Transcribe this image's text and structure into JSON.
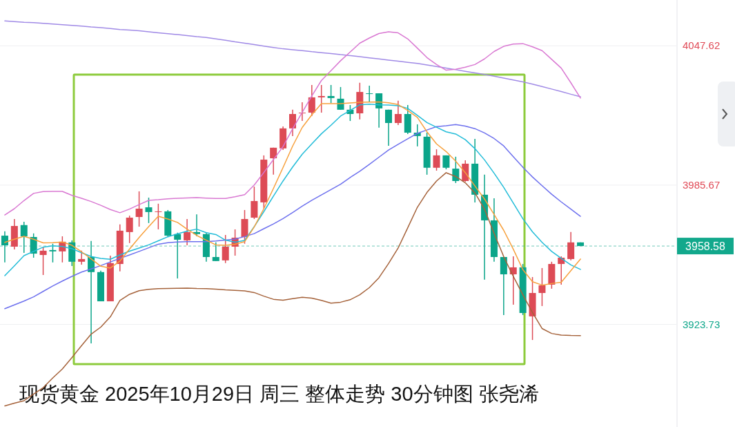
{
  "chart_data": {
    "type": "candlestick",
    "title": "现货黄金 2025年10月29日 周三 整体走势 30分钟图 张尧浠",
    "categories": [
      null,
      null,
      null,
      null,
      null,
      null,
      null,
      null,
      null,
      null,
      null,
      null,
      null,
      null,
      null,
      null,
      null,
      null,
      null,
      null,
      null,
      null,
      null,
      null,
      null,
      null,
      null,
      null,
      null,
      null,
      null,
      null,
      null,
      null,
      null,
      null,
      null,
      null,
      null,
      null,
      null,
      null,
      null,
      null,
      null,
      null,
      null,
      null,
      null,
      null,
      null,
      null,
      null,
      null,
      null,
      null,
      null,
      null,
      null,
      null,
      null
    ],
    "ohlc": [
      [
        3963.2,
        3965.1,
        3951.3,
        3958.9
      ],
      [
        3958.3,
        3970.6,
        3957.1,
        3967.5
      ],
      [
        3967.9,
        3969.4,
        3955.5,
        3962.9
      ],
      [
        3962.6,
        3964.2,
        3953.4,
        3955.2
      ],
      [
        3954.6,
        3958.0,
        3945.7,
        3956.5
      ],
      [
        3956.8,
        3959.6,
        3951.3,
        3956.2
      ],
      [
        3956.2,
        3962.9,
        3951.3,
        3960.5
      ],
      [
        3960.2,
        3961.1,
        3949.7,
        3951.6
      ],
      [
        3951.6,
        3956.5,
        3950.3,
        3952.8
      ],
      [
        3953.7,
        3960.8,
        3915.3,
        3947.0
      ],
      [
        3947.0,
        3947.6,
        3934.0,
        3934.0
      ],
      [
        3934.0,
        3954.3,
        3934.0,
        3951.0
      ],
      [
        3950.6,
        3968.2,
        3947.3,
        3965.4
      ],
      [
        3964.8,
        3972.1,
        3959.9,
        3971.2
      ],
      [
        3971.5,
        3982.9,
        3967.2,
        3975.2
      ],
      [
        3975.8,
        3980.1,
        3968.8,
        3973.7
      ],
      [
        3973.7,
        3977.4,
        3966.0,
        3974.0
      ],
      [
        3974.0,
        3974.6,
        3962.6,
        3963.2
      ],
      [
        3963.9,
        3964.5,
        3944.2,
        3961.4
      ],
      [
        3961.1,
        3970.6,
        3958.9,
        3964.8
      ],
      [
        3964.8,
        3972.7,
        3962.9,
        3963.9
      ],
      [
        3963.9,
        3964.5,
        3951.6,
        3953.7
      ],
      [
        3953.7,
        3960.2,
        3951.9,
        3951.9
      ],
      [
        3952.2,
        3963.5,
        3951.0,
        3958.3
      ],
      [
        3958.3,
        3966.0,
        3954.3,
        3962.3
      ],
      [
        3962.6,
        3974.6,
        3959.6,
        3970.6
      ],
      [
        3971.2,
        3985.0,
        3970.6,
        3978.6
      ],
      [
        3978.0,
        3998.9,
        3975.2,
        3997.0
      ],
      [
        3997.6,
        4002.3,
        3990.3,
        4002.3
      ],
      [
        4002.0,
        4011.8,
        4001.3,
        4010.9
      ],
      [
        4010.9,
        4019.2,
        4007.5,
        4017.3
      ],
      [
        4017.6,
        4022.5,
        4014.2,
        4017.9
      ],
      [
        4017.9,
        4030.2,
        4016.4,
        4024.7
      ],
      [
        4024.7,
        4030.2,
        4017.9,
        4025.3
      ],
      [
        4025.3,
        4030.2,
        4022.2,
        4024.4
      ],
      [
        4024.1,
        4029.3,
        4019.2,
        4019.2
      ],
      [
        4019.2,
        4021.3,
        4014.2,
        4017.3
      ],
      [
        4017.6,
        4031.2,
        4014.9,
        4027.1
      ],
      [
        4026.5,
        4029.9,
        4022.8,
        4026.2
      ],
      [
        4026.5,
        4026.5,
        4011.2,
        4019.8
      ],
      [
        4019.2,
        4019.2,
        4003.2,
        4013.3
      ],
      [
        4013.3,
        4023.2,
        4012.4,
        4017.3
      ],
      [
        4017.3,
        4021.3,
        4008.4,
        4009.0
      ],
      [
        4009.0,
        4012.7,
        4002.9,
        4007.5
      ],
      [
        4007.2,
        4009.0,
        3990.3,
        3993.4
      ],
      [
        3993.4,
        4001.6,
        3992.1,
        3998.9
      ],
      [
        3998.9,
        3998.9,
        3992.7,
        3993.4
      ],
      [
        3993.0,
        3998.3,
        3986.6,
        3987.5
      ],
      [
        3987.5,
        3996.7,
        3987.2,
        3995.2
      ],
      [
        3995.2,
        4006.2,
        3978.0,
        3981.4
      ],
      [
        3981.4,
        3990.3,
        3943.6,
        3970.0
      ],
      [
        3970.0,
        3979.8,
        3951.6,
        3953.7
      ],
      [
        3953.7,
        3953.7,
        3927.9,
        3946.0
      ],
      [
        3946.0,
        3954.0,
        3932.5,
        3949.1
      ],
      [
        3949.1,
        3950.6,
        3927.9,
        3928.8
      ],
      [
        3927.3,
        3944.8,
        3916.8,
        3937.7
      ],
      [
        3937.7,
        3948.8,
        3931.9,
        3941.1
      ],
      [
        3941.4,
        3951.6,
        3939.6,
        3950.6
      ],
      [
        3950.6,
        3954.0,
        3941.4,
        3953.4
      ],
      [
        3952.8,
        3964.8,
        3952.2,
        3960.2
      ],
      [
        3960.2,
        3960.2,
        3958.58,
        3958.58
      ]
    ],
    "colors": [
      "#0ba58a",
      "#dd4b56",
      "#0ba58a",
      "#0ba58a",
      "#dd4b56",
      "#0ba58a",
      "#dd4b56",
      "#0ba58a",
      "#dd4b56",
      "#0ba58a",
      "#0ba58a",
      "#dd4b56",
      "#dd4b56",
      "#dd4b56",
      "#dd4b56",
      "#0ba58a",
      "#dd4b56",
      "#0ba58a",
      "#0ba58a",
      "#dd4b56",
      "#0ba58a",
      "#0ba58a",
      "#0ba58a",
      "#dd4b56",
      "#dd4b56",
      "#dd4b56",
      "#dd4b56",
      "#dd4b56",
      "#dd4b56",
      "#dd4b56",
      "#dd4b56",
      "#dd4b56",
      "#dd4b56",
      "#dd4b56",
      "#0ba58a",
      "#0ba58a",
      "#0ba58a",
      "#dd4b56",
      "#0ba58a",
      "#0ba58a",
      "#0ba58a",
      "#dd4b56",
      "#0ba58a",
      "#0ba58a",
      "#0ba58a",
      "#dd4b56",
      "#0ba58a",
      "#0ba58a",
      "#dd4b56",
      "#0ba58a",
      "#0ba58a",
      "#0ba58a",
      "#0ba58a",
      "#dd4b56",
      "#0ba58a",
      "#dd4b56",
      "#dd4b56",
      "#dd4b56",
      "#dd4b56",
      "#dd4b56",
      "#0ba58a"
    ],
    "series": [
      {
        "type": "line",
        "color": "#a08ae6",
        "values": [
          4058.7,
          4058.4,
          4058.1,
          4057.9,
          4057.6,
          4057.3,
          4057.0,
          4056.7,
          4056.4,
          4056.0,
          4055.7,
          4055.3,
          4054.9,
          4054.6,
          4054.3,
          4053.9,
          4053.4,
          4053.0,
          4052.6,
          4052.2,
          4051.7,
          4051.3,
          4050.7,
          4050.1,
          4049.4,
          4048.8,
          4048.2,
          4047.5,
          4046.9,
          4046.3,
          4045.9,
          4045.5,
          4045.0,
          4044.6,
          4044.2,
          4043.7,
          4043.3,
          4042.8,
          4042.3,
          4041.8,
          4041.3,
          4040.8,
          4040.3,
          4039.8,
          4039.1,
          4038.4,
          4037.7,
          4037.0,
          4036.3,
          4035.6,
          4034.9,
          4034.1,
          4033.3,
          4032.4,
          4031.6,
          4030.6,
          4029.5,
          4028.4,
          4027.3,
          4026.1,
          4025.0
        ]
      },
      {
        "type": "line",
        "color": "#d978d2",
        "values": [
          3972.4,
          3975.2,
          3978.8,
          3982.0,
          3982.8,
          3982.9,
          3982.9,
          3981.1,
          3979.8,
          3978.4,
          3976.7,
          3974.8,
          3973.4,
          3975.0,
          3977.0,
          3978.9,
          3979.2,
          3979.6,
          3979.8,
          3980.0,
          3980.1,
          3979.9,
          3979.7,
          3979.7,
          3980.5,
          3981.4,
          3985.7,
          3991.3,
          3997.0,
          4002.8,
          4010.7,
          4018.0,
          4025.3,
          4032.2,
          4036.6,
          4041.0,
          4044.9,
          4048.8,
          4051.1,
          4053.1,
          4053.9,
          4053.4,
          4050.7,
          4046.6,
          4042.4,
          4039.3,
          4036.8,
          4037.2,
          4038.1,
          4039.3,
          4041.8,
          4045.1,
          4047.4,
          4048.4,
          4048.6,
          4047.2,
          4045.5,
          4041.6,
          4037.7,
          4031.2,
          4024.4
        ]
      },
      {
        "type": "line",
        "color": "#6d70ee",
        "values": [
          3930.7,
          3932.4,
          3934.1,
          3936.0,
          3938.4,
          3940.8,
          3943.0,
          3945.1,
          3947.0,
          3948.4,
          3949.9,
          3951.5,
          3953.1,
          3954.6,
          3956.2,
          3957.8,
          3959.4,
          3960.1,
          3960.4,
          3960.5,
          3960.5,
          3960.5,
          3960.8,
          3961.2,
          3961.7,
          3962.8,
          3964.1,
          3966.3,
          3968.4,
          3970.8,
          3973.5,
          3976.3,
          3978.9,
          3981.3,
          3983.7,
          3986.1,
          3989.1,
          3991.8,
          3994.9,
          3998.1,
          4001.3,
          4003.8,
          4006.3,
          4008.7,
          4010.2,
          4011.7,
          4012.1,
          4012.6,
          4011.9,
          4010.8,
          4008.9,
          4006.4,
          4003.1,
          3998.3,
          3993.6,
          3989.3,
          3985.4,
          3981.6,
          3978.2,
          3975.0,
          3971.8
        ]
      },
      {
        "type": "line",
        "color": "#22bcd8",
        "values": [
          3945.4,
          3949.8,
          3954.3,
          3956.2,
          3958.1,
          3958.7,
          3958.4,
          3957.4,
          3955.6,
          3953.9,
          3953.1,
          3952.7,
          3954.6,
          3956.3,
          3957.7,
          3959.1,
          3960.9,
          3962.7,
          3964.0,
          3965.2,
          3966.1,
          3964.5,
          3963.7,
          3961.2,
          3960.3,
          3961.1,
          3967.2,
          3973.9,
          3980.8,
          3987.5,
          3993.7,
          3999.4,
          4004.0,
          4008.5,
          4012.3,
          4016.4,
          4018.9,
          4021.4,
          4021.7,
          4021.4,
          4021.3,
          4021.0,
          4019.8,
          4016.7,
          4013.5,
          4011.4,
          4009.4,
          4008.4,
          4005.9,
          4001.9,
          3996.9,
          3991.0,
          3984.7,
          3977.7,
          3970.7,
          3964.9,
          3960.2,
          3956.2,
          3953.1,
          3950.2,
          3948.2
        ]
      },
      {
        "type": "line",
        "color": "#f7a03c",
        "values": [
          3960.2,
          3961.6,
          3962.9,
          3961.6,
          3960.0,
          3960.1,
          3960.4,
          3958.9,
          3956.0,
          3952.9,
          3949.6,
          3948.8,
          3951.9,
          3957.2,
          3962.4,
          3967.2,
          3971.8,
          3970.6,
          3969.1,
          3966.1,
          3963.3,
          3961.2,
          3959.1,
          3958.9,
          3959.4,
          3960.5,
          3967.1,
          3975.2,
          3984.2,
          3993.5,
          4003.0,
          4011.3,
          4016.9,
          4021.9,
          4021.9,
          4021.9,
          4022.2,
          4022.5,
          4022.6,
          4022.7,
          4022.3,
          4021.5,
          4018.9,
          4015.8,
          4009.4,
          4004.0,
          4000.6,
          3996.3,
          3991.2,
          3985.3,
          3979.5,
          3972.6,
          3965.6,
          3957.2,
          3948.1,
          3942.7,
          3941.2,
          3941.9,
          3942.5,
          3947.6,
          3952.8
        ]
      },
      {
        "type": "line",
        "color": "#a5623a",
        "values": [
          3887.5,
          3888.7,
          3889.8,
          3892.7,
          3895.6,
          3899.9,
          3903.9,
          3909.0,
          3914.3,
          3919.4,
          3922.5,
          3927.1,
          3934.4,
          3937.1,
          3938.7,
          3939.3,
          3939.6,
          3939.7,
          3939.8,
          3939.9,
          3939.7,
          3939.6,
          3939.4,
          3939.1,
          3938.9,
          3938.6,
          3937.9,
          3936.3,
          3934.9,
          3934.5,
          3935.2,
          3935.8,
          3935.4,
          3934.4,
          3933.2,
          3933.6,
          3934.7,
          3936.9,
          3940.1,
          3944.5,
          3950.8,
          3957.7,
          3966.7,
          3975.8,
          3982.4,
          3987.5,
          3991.2,
          3989.5,
          3986.7,
          3982.2,
          3975.0,
          3964.2,
          3953.9,
          3945.1,
          3936.9,
          3929.0,
          3921.9,
          3919.7,
          3919.0,
          3918.8,
          3918.7
        ]
      }
    ],
    "ylim": [
      3878.1,
      4068.0
    ],
    "yticks": [
      3923.73,
      3985.67,
      4047.62
    ],
    "grid": "y",
    "ref_lines": [
      {
        "axis": "y",
        "value": 3958.58,
        "label": "3958.58",
        "color": "#12a88c",
        "line_style": "dashed"
      }
    ]
  }
}
